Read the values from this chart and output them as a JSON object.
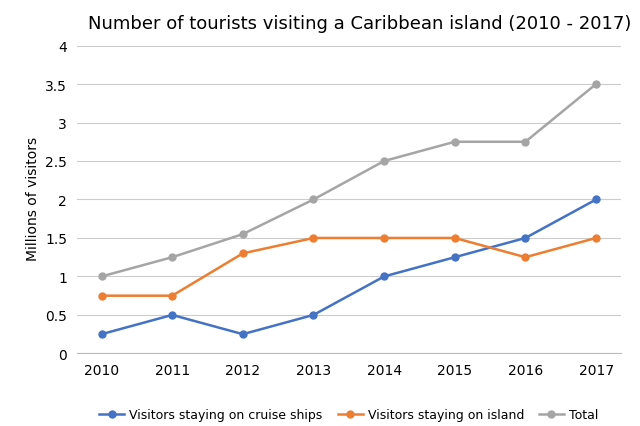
{
  "title": "Number of tourists visiting a Caribbean island (2010 - 2017)",
  "ylabel": "Millions of visitors",
  "years": [
    2010,
    2011,
    2012,
    2013,
    2014,
    2015,
    2016,
    2017
  ],
  "cruise_ships": [
    0.25,
    0.5,
    0.25,
    0.5,
    1.0,
    1.25,
    1.5,
    2.0
  ],
  "island": [
    0.75,
    0.75,
    1.3,
    1.5,
    1.5,
    1.5,
    1.25,
    1.5
  ],
  "total": [
    1.0,
    1.25,
    1.55,
    2.0,
    2.5,
    2.75,
    2.75,
    3.5
  ],
  "cruise_color": "#4472C4",
  "island_color": "#ED7D31",
  "total_color": "#A5A5A5",
  "ylim": [
    0,
    4.05
  ],
  "yticks": [
    0,
    0.5,
    1.0,
    1.5,
    2.0,
    2.5,
    3.0,
    3.5,
    4.0
  ],
  "legend_labels": [
    "Visitors staying on cruise ships",
    "Visitors staying on island",
    "Total"
  ],
  "background_color": "#ffffff",
  "grid_color": "#cccccc",
  "title_fontsize": 13,
  "axis_label_fontsize": 10,
  "tick_fontsize": 10,
  "legend_fontsize": 9
}
